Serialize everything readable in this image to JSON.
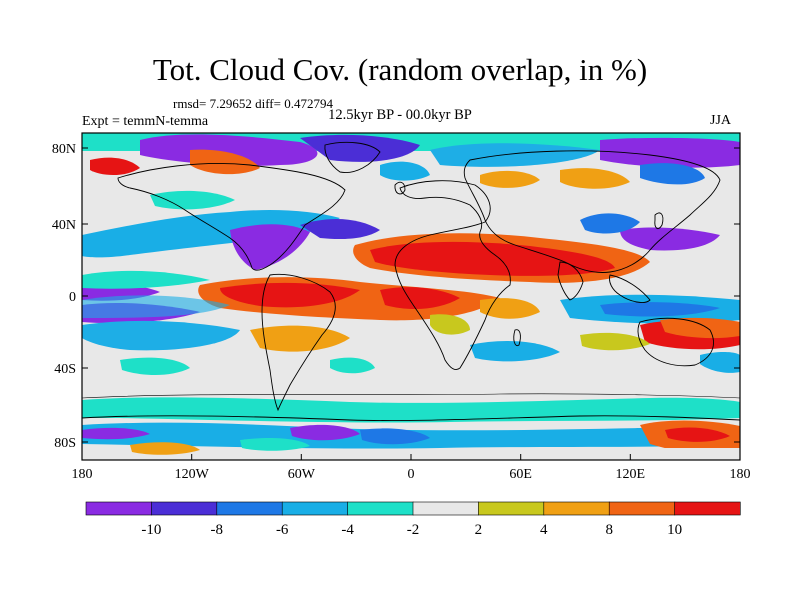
{
  "title": "Tot. Cloud Cov. (random overlap, in %)",
  "stats": "rmsd= 7.29652 diff= 0.472794",
  "expt": "Expt = temmN-temma",
  "period": "12.5kyr BP - 00.0kyr BP",
  "season": "JJA",
  "lat_labels": [
    "80N",
    "40N",
    "0",
    "40S",
    "80S"
  ],
  "lon_labels": [
    "180",
    "120W",
    "60W",
    "0",
    "60E",
    "120E",
    "180"
  ],
  "colorbar": {
    "labels": [
      "-10",
      "-8",
      "-6",
      "-4",
      "-2",
      "2",
      "4",
      "8",
      "10"
    ],
    "colors": [
      "#8a2be2",
      "#4b2ed6",
      "#1e78e6",
      "#19aee6",
      "#1ee0c8",
      "#e8e8e8",
      "#c8c81e",
      "#f0a014",
      "#f06414",
      "#e61414"
    ]
  },
  "colors": {
    "strong_neg": "#8a2be2",
    "neg": "#4b2ed6",
    "mid_neg": "#1e78e6",
    "light_neg": "#19aee6",
    "weak_neg": "#1ee0c8",
    "neutral": "#e8e8e8",
    "weak_pos": "#c8c81e",
    "light_pos": "#f0a014",
    "mid_pos": "#f06414",
    "strong_pos": "#e61414"
  }
}
